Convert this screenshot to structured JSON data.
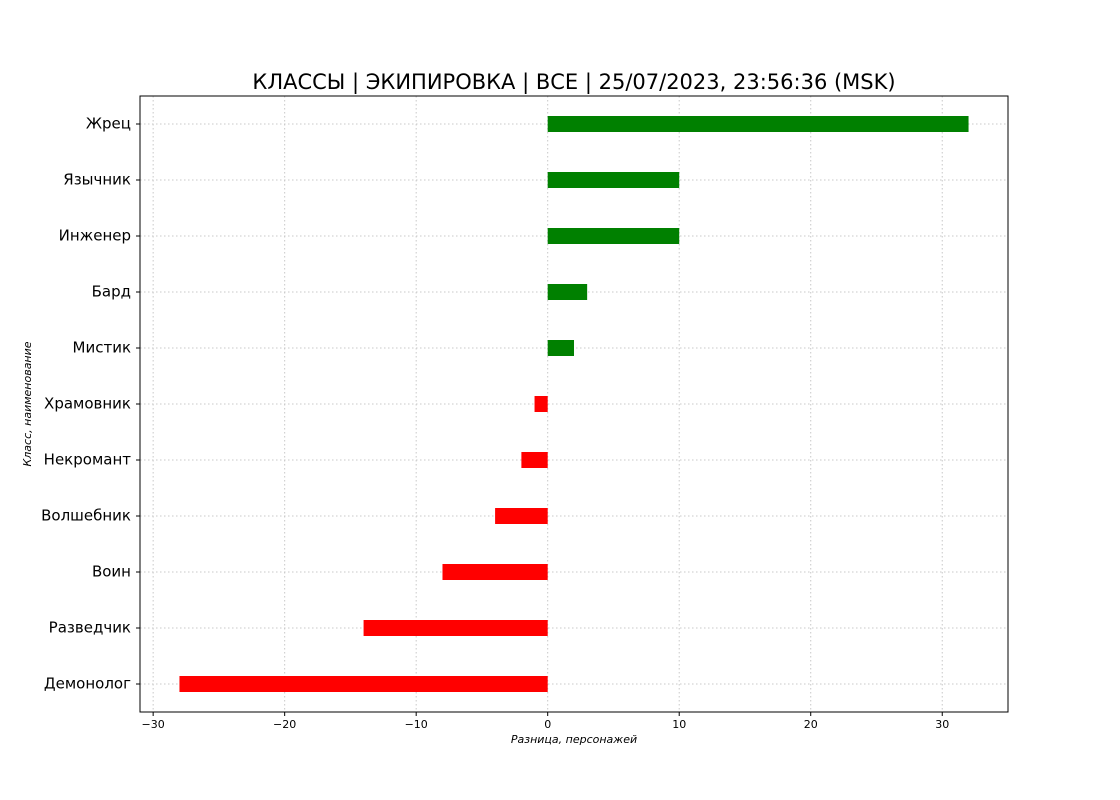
{
  "chart_data": {
    "type": "barh",
    "title": "КЛАССЫ | ЭКИПИРОВКА | ВСЕ | 25/07/2023, 23:56:36 (MSK)",
    "xlabel": "Разница, персонажей",
    "ylabel": "Класс, наименование",
    "categories": [
      "Жрец",
      "Язычник",
      "Инженер",
      "Бард",
      "Мистик",
      "Храмовник",
      "Некромант",
      "Волшебник",
      "Воин",
      "Разведчик",
      "Демонолог"
    ],
    "values": [
      32,
      10,
      10,
      3,
      2,
      -1,
      -2,
      -4,
      -8,
      -14,
      -28
    ],
    "colors": [
      "#008000",
      "#008000",
      "#008000",
      "#008000",
      "#008000",
      "#ff0000",
      "#ff0000",
      "#ff0000",
      "#ff0000",
      "#ff0000",
      "#ff0000"
    ],
    "xlim": [
      -31,
      35
    ],
    "xticks": [
      {
        "value": -30,
        "label": "−30"
      },
      {
        "value": -20,
        "label": "−20"
      },
      {
        "value": -10,
        "label": "−10"
      },
      0,
      10,
      20,
      30
    ],
    "grid": true
  }
}
